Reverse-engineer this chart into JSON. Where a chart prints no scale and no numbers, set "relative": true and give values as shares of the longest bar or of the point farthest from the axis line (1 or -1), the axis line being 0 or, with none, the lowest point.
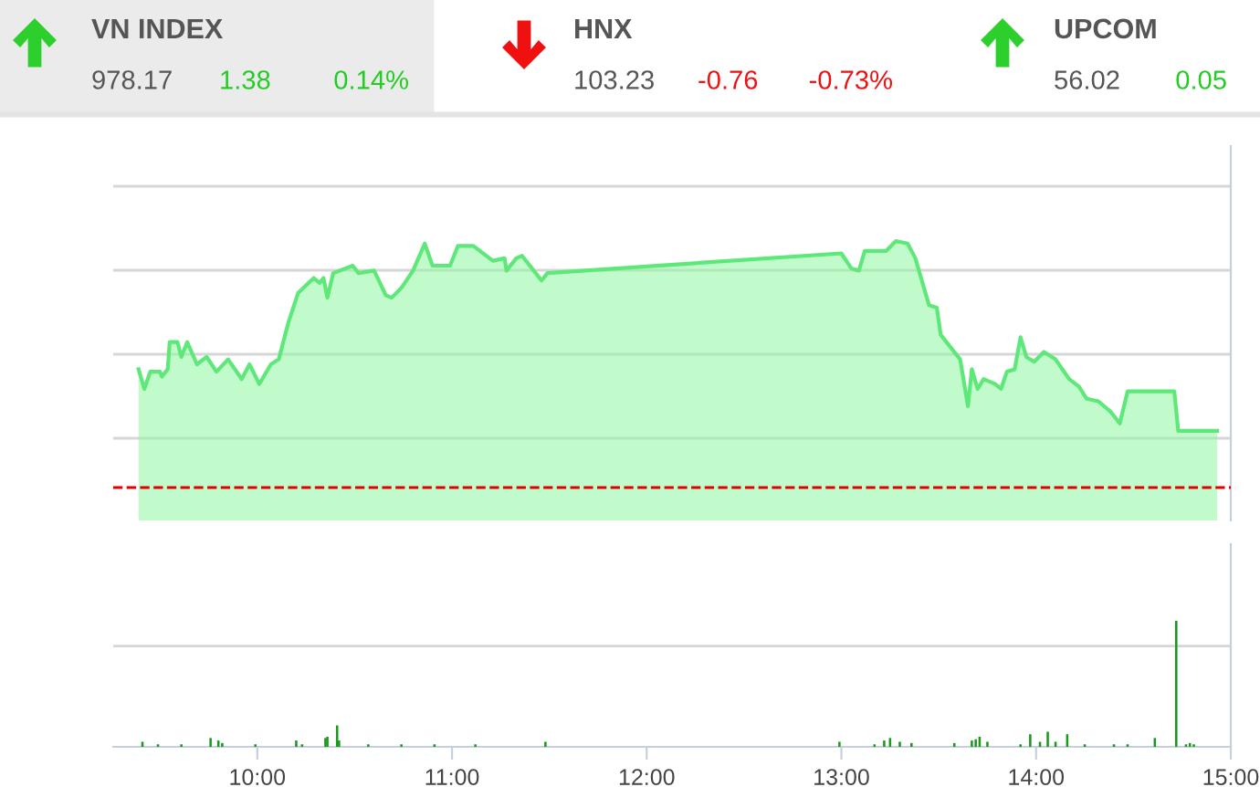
{
  "chart_data": [
    {
      "type": "other",
      "annotations": [
        "VN INDEX",
        "978.17",
        "1.38",
        "0.14%",
        "HNX",
        "103.23",
        "-0.76",
        "-0.73%",
        "UPCOM",
        "56.02",
        "0.05"
      ]
    },
    {
      "type": "area",
      "relative": true,
      "color": "#5ee87a",
      "grid": "y",
      "tick_labels": false,
      "xlim": [
        9.26,
        15.0
      ],
      "ref_lines": [
        {
          "axis": "y",
          "value": 0,
          "label": null,
          "color": "#e00000",
          "line_style": "dashed"
        }
      ],
      "x": [
        9.39,
        9.42,
        9.45,
        9.5,
        9.51,
        9.54,
        9.55,
        9.59,
        9.61,
        9.64,
        9.69,
        9.74,
        9.79,
        9.85,
        9.92,
        9.96,
        10.01,
        10.07,
        10.11,
        10.16,
        10.21,
        10.29,
        10.32,
        10.34,
        10.36,
        10.39,
        10.49,
        10.52,
        10.6,
        10.66,
        10.69,
        10.74,
        10.8,
        10.86,
        10.9,
        10.99,
        11.03,
        11.11,
        11.21,
        11.27,
        11.28,
        11.33,
        11.36,
        11.42,
        11.46,
        11.49,
        13.0,
        13.05,
        13.09,
        13.12,
        13.23,
        13.28,
        13.34,
        13.38,
        13.45,
        13.49,
        13.51,
        13.61,
        13.65,
        13.67,
        13.7,
        13.73,
        13.79,
        13.82,
        13.85,
        13.89,
        13.92,
        13.95,
        13.99,
        14.04,
        14.1,
        14.17,
        14.22,
        14.26,
        14.32,
        14.38,
        14.43,
        14.47,
        14.71,
        14.73,
        14.93
      ],
      "values": [
        0.48,
        0.4,
        0.47,
        0.47,
        0.45,
        0.48,
        0.59,
        0.59,
        0.53,
        0.59,
        0.5,
        0.53,
        0.47,
        0.52,
        0.44,
        0.5,
        0.42,
        0.5,
        0.52,
        0.67,
        0.79,
        0.85,
        0.83,
        0.85,
        0.77,
        0.87,
        0.9,
        0.87,
        0.88,
        0.78,
        0.77,
        0.81,
        0.88,
        0.99,
        0.9,
        0.9,
        0.98,
        0.98,
        0.92,
        0.93,
        0.88,
        0.93,
        0.94,
        0.88,
        0.84,
        0.87,
        0.95,
        0.89,
        0.88,
        0.96,
        0.96,
        1.0,
        0.99,
        0.93,
        0.74,
        0.73,
        0.62,
        0.52,
        0.33,
        0.48,
        0.4,
        0.44,
        0.42,
        0.4,
        0.47,
        0.48,
        0.61,
        0.53,
        0.51,
        0.55,
        0.52,
        0.44,
        0.41,
        0.36,
        0.35,
        0.31,
        0.26,
        0.39,
        0.39,
        0.23,
        0.23
      ]
    },
    {
      "type": "bar",
      "relative": true,
      "color": "#1a9a1a",
      "tick_labels": "x",
      "xlim": [
        9.26,
        15.0
      ],
      "ref_lines": [
        {
          "axis": "y",
          "value": 0.8,
          "label": null,
          "color": "#d6d6d6",
          "line_style": "solid"
        }
      ],
      "xticks": [
        {
          "value": 10,
          "label": "10:00"
        },
        {
          "value": 11,
          "label": "11:00"
        },
        {
          "value": 12,
          "label": "12:00"
        },
        {
          "value": 13,
          "label": "13:00"
        },
        {
          "value": 14,
          "label": "14:00"
        },
        {
          "value": 15,
          "label": "15:00"
        }
      ],
      "x": [
        9.41,
        9.49,
        9.61,
        9.76,
        9.8,
        9.82,
        9.99,
        10.2,
        10.23,
        10.35,
        10.36,
        10.41,
        10.42,
        10.57,
        10.74,
        10.91,
        11.12,
        11.48,
        12.99,
        13.17,
        13.22,
        13.25,
        13.3,
        13.36,
        13.58,
        13.67,
        13.69,
        13.71,
        13.75,
        13.92,
        13.97,
        14.02,
        14.06,
        14.1,
        14.16,
        14.25,
        14.4,
        14.47,
        14.61,
        14.72,
        14.77,
        14.79,
        14.81
      ],
      "values": [
        0.04,
        0.02,
        0.02,
        0.07,
        0.05,
        0.03,
        0.02,
        0.05,
        0.02,
        0.07,
        0.08,
        0.17,
        0.05,
        0.02,
        0.02,
        0.02,
        0.02,
        0.04,
        0.04,
        0.02,
        0.05,
        0.07,
        0.04,
        0.03,
        0.03,
        0.05,
        0.06,
        0.08,
        0.04,
        0.02,
        0.1,
        0.04,
        0.12,
        0.04,
        0.1,
        0.02,
        0.02,
        0.02,
        0.07,
        1.0,
        0.02,
        0.03,
        0.02
      ]
    }
  ]
}
